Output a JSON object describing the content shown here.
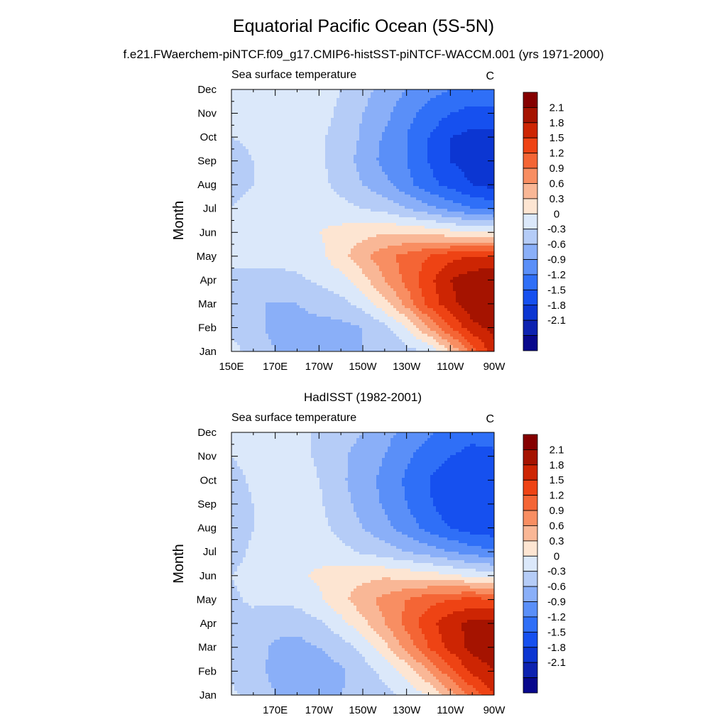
{
  "figure": {
    "title": "Equatorial Pacific Ocean (5S-5N)",
    "subtitle": "f.e21.FWaerchem-piNTCF.f09_g17.CMIP6-histSST-piNTCF-WACCM.001 (yrs 1971-2000)"
  },
  "colorbar": {
    "levels": [
      -2.1,
      -1.8,
      -1.5,
      -1.2,
      -0.9,
      -0.6,
      -0.3,
      0,
      0.3,
      0.6,
      0.9,
      1.2,
      1.5,
      1.8,
      2.1
    ],
    "labels": [
      "-2.1",
      "-1.8",
      "-1.5",
      "-1.2",
      "-0.9",
      "-0.6",
      "-0.3",
      "0",
      "0.3",
      "0.6",
      "0.9",
      "1.2",
      "1.5",
      "1.8",
      "2.1"
    ],
    "colors": [
      "#08088c",
      "#0d22b0",
      "#0c36d2",
      "#1650ef",
      "#2f6ff7",
      "#5a8ff8",
      "#8aaff8",
      "#b5ccf7",
      "#dbe8fa",
      "#fde5d2",
      "#f9b796",
      "#f88e62",
      "#f46535",
      "#ee4314",
      "#cd2503",
      "#a51300",
      "#850000"
    ]
  },
  "chart_data": [
    {
      "type": "heatmap",
      "title": "",
      "left_string": "Sea surface temperature",
      "right_string": "C",
      "xlabel": "",
      "ylabel": "Month",
      "x": [
        150,
        160,
        170,
        180,
        190,
        200,
        210,
        220,
        230,
        240,
        250,
        260,
        270
      ],
      "x_units": "degrees east longitude",
      "xlim": [
        150,
        270
      ],
      "x_ticks": [
        150,
        170,
        190,
        210,
        230,
        250,
        270
      ],
      "x_tick_labels": [
        "150E",
        "170E",
        "170W",
        "150W",
        "130W",
        "110W",
        "90W"
      ],
      "y": [
        1,
        2,
        3,
        4,
        5,
        6,
        7,
        8,
        9,
        10,
        11,
        12
      ],
      "y_tick_labels": [
        "Jan",
        "Feb",
        "Mar",
        "Apr",
        "May",
        "Jun",
        "Jul",
        "Aug",
        "Sep",
        "Oct",
        "Nov",
        "Dec"
      ],
      "ylim": [
        1,
        12
      ],
      "z_units": "C",
      "z": [
        [
          0.1,
          -0.1,
          -0.3,
          -0.3,
          -0.3,
          -0.3,
          -0.3,
          -0.3,
          -0.1,
          0.0,
          0.6,
          1.3,
          2.0
        ],
        [
          -0.1,
          -0.2,
          -0.4,
          -0.4,
          -0.4,
          -0.4,
          -0.3,
          -0.1,
          0.3,
          0.9,
          1.5,
          2.0,
          2.2
        ],
        [
          -0.2,
          -0.3,
          -0.3,
          -0.3,
          -0.2,
          -0.1,
          0.1,
          0.5,
          1.0,
          1.6,
          2.0,
          2.3,
          2.4
        ],
        [
          -0.1,
          -0.1,
          -0.1,
          -0.05,
          0.05,
          0.2,
          0.5,
          0.9,
          1.3,
          1.7,
          2.1,
          2.3,
          2.4
        ],
        [
          0.1,
          0.1,
          0.1,
          0.1,
          0.2,
          0.5,
          0.8,
          1.1,
          1.3,
          1.5,
          1.7,
          1.8,
          1.8
        ],
        [
          0.1,
          0.1,
          0.15,
          0.2,
          0.3,
          0.4,
          0.5,
          0.55,
          0.55,
          0.5,
          0.4,
          0.35,
          0.3
        ],
        [
          0.0,
          0.1,
          0.2,
          0.2,
          0.2,
          0.1,
          0.0,
          -0.1,
          -0.3,
          -0.5,
          -0.7,
          -0.9,
          -1.0
        ],
        [
          -0.1,
          0.0,
          0.15,
          0.2,
          0.1,
          -0.1,
          -0.3,
          -0.5,
          -0.8,
          -1.1,
          -1.3,
          -1.5,
          -1.6
        ],
        [
          -0.1,
          0.0,
          0.1,
          0.2,
          0.05,
          -0.15,
          -0.4,
          -0.7,
          -0.9,
          -1.2,
          -1.5,
          -1.65,
          -1.7
        ],
        [
          0.0,
          0.05,
          0.1,
          0.15,
          0.05,
          -0.1,
          -0.35,
          -0.65,
          -0.9,
          -1.2,
          -1.5,
          -1.6,
          -1.6
        ],
        [
          0.05,
          0.1,
          0.15,
          0.15,
          0.1,
          -0.05,
          -0.3,
          -0.5,
          -0.8,
          -1.0,
          -1.2,
          -1.3,
          -1.3
        ],
        [
          0.1,
          0.1,
          0.15,
          0.15,
          0.1,
          0.0,
          -0.2,
          -0.4,
          -0.6,
          -0.8,
          -0.9,
          -1.0,
          -0.9
        ]
      ]
    },
    {
      "type": "heatmap",
      "title": "HadISST (1982-2001)",
      "left_string": "Sea surface temperature",
      "right_string": "C",
      "xlabel": "",
      "ylabel": "Month",
      "x": [
        150,
        160,
        170,
        180,
        190,
        200,
        210,
        220,
        230,
        240,
        250,
        260,
        270
      ],
      "x_units": "degrees east longitude",
      "xlim": [
        150,
        270
      ],
      "x_ticks": [
        170,
        190,
        210,
        230,
        250,
        270
      ],
      "x_tick_labels": [
        "170E",
        "170W",
        "150W",
        "130W",
        "110W",
        "90W"
      ],
      "y": [
        1,
        2,
        3,
        4,
        5,
        6,
        7,
        8,
        9,
        10,
        11,
        12
      ],
      "y_tick_labels": [
        "Jan",
        "Feb",
        "Mar",
        "Apr",
        "May",
        "Jun",
        "Jul",
        "Aug",
        "Sep",
        "Oct",
        "Nov",
        "Dec"
      ],
      "ylim": [
        1,
        12
      ],
      "z_units": "C",
      "z": [
        [
          0.05,
          -0.1,
          -0.3,
          -0.4,
          -0.35,
          -0.3,
          -0.2,
          -0.1,
          0.1,
          0.3,
          0.8,
          1.3,
          1.8
        ],
        [
          -0.05,
          -0.15,
          -0.4,
          -0.45,
          -0.45,
          -0.35,
          -0.15,
          0.1,
          0.4,
          0.9,
          1.4,
          1.9,
          2.1
        ],
        [
          -0.1,
          -0.2,
          -0.35,
          -0.4,
          -0.3,
          -0.15,
          0.1,
          0.5,
          1.0,
          1.5,
          1.9,
          2.2,
          2.3
        ],
        [
          -0.1,
          -0.1,
          -0.2,
          -0.2,
          -0.05,
          0.2,
          0.5,
          0.9,
          1.3,
          1.7,
          2.0,
          2.2,
          2.2
        ],
        [
          -0.05,
          0.05,
          0.05,
          0.1,
          0.25,
          0.5,
          0.8,
          1.0,
          1.2,
          1.4,
          1.5,
          1.6,
          1.5
        ],
        [
          0.0,
          0.1,
          0.15,
          0.25,
          0.35,
          0.45,
          0.5,
          0.55,
          0.5,
          0.45,
          0.35,
          0.25,
          0.15
        ],
        [
          -0.1,
          0.05,
          0.2,
          0.25,
          0.2,
          0.1,
          -0.05,
          -0.15,
          -0.3,
          -0.45,
          -0.6,
          -0.75,
          -0.85
        ],
        [
          -0.2,
          0.0,
          0.2,
          0.25,
          0.1,
          -0.1,
          -0.3,
          -0.5,
          -0.75,
          -1.0,
          -1.2,
          -1.35,
          -1.4
        ],
        [
          -0.15,
          0.0,
          0.3,
          0.25,
          0.05,
          -0.2,
          -0.4,
          -0.65,
          -0.9,
          -1.15,
          -1.4,
          -1.5,
          -1.5
        ],
        [
          -0.1,
          0.05,
          0.15,
          0.15,
          0.0,
          -0.25,
          -0.45,
          -0.7,
          -0.95,
          -1.2,
          -1.4,
          -1.5,
          -1.5
        ],
        [
          0.0,
          0.1,
          0.15,
          0.1,
          -0.05,
          -0.25,
          -0.4,
          -0.6,
          -0.85,
          -1.05,
          -1.2,
          -1.3,
          -1.3
        ],
        [
          0.05,
          0.1,
          0.15,
          0.1,
          -0.05,
          -0.2,
          -0.3,
          -0.5,
          -0.7,
          -0.85,
          -1.0,
          -1.1,
          -1.0
        ]
      ]
    }
  ]
}
